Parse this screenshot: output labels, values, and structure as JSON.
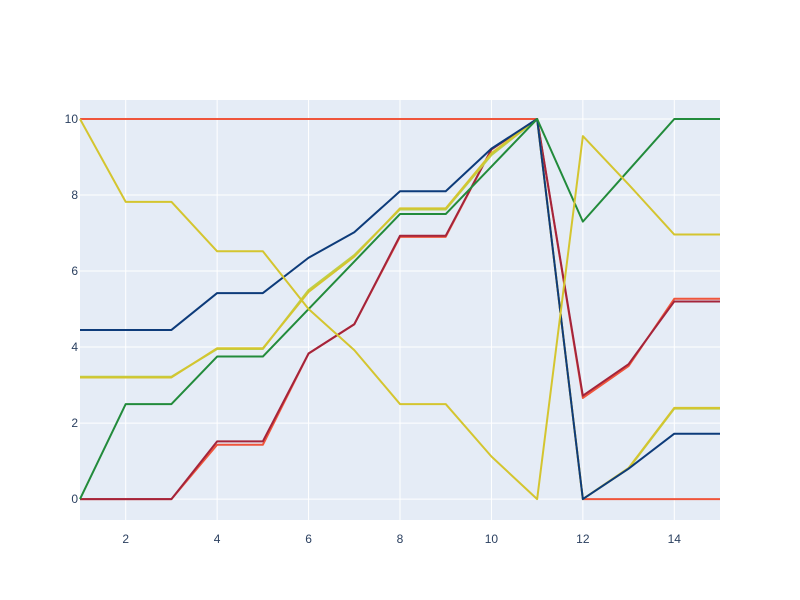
{
  "chart_data": {
    "type": "line",
    "title": "",
    "xlabel": "",
    "ylabel": "",
    "xlim": [
      1,
      15
    ],
    "ylim": [
      -0.55,
      10.5
    ],
    "grid": true,
    "legend": "none",
    "plot_background": "#E5ECF6",
    "gridline_color": "#ffffff",
    "tick_color": "#2a3f5f",
    "x_ticks": [
      2,
      4,
      6,
      8,
      10,
      12,
      14
    ],
    "y_ticks": [
      0,
      2,
      4,
      6,
      8,
      10
    ],
    "x": [
      1,
      2,
      3,
      4,
      5,
      6,
      7,
      8,
      9,
      10,
      11,
      12,
      13,
      14,
      15
    ],
    "series": [
      {
        "color": "#ef553b",
        "values": [
          10,
          10,
          10,
          10,
          10,
          10,
          10,
          10,
          10,
          10,
          10,
          0,
          0,
          0,
          0
        ]
      },
      {
        "color": "#ef553b",
        "values": [
          0,
          0,
          0,
          1.43,
          1.43,
          3.83,
          4.6,
          6.9,
          6.9,
          9.2,
          10,
          2.66,
          3.5,
          5.27,
          5.27
        ]
      },
      {
        "color": "#a4243b",
        "values": [
          0,
          0,
          0,
          1.52,
          1.52,
          3.83,
          4.6,
          6.93,
          6.93,
          9.2,
          10,
          2.72,
          3.55,
          5.2,
          5.2
        ]
      },
      {
        "color": "#bcd04a",
        "values": [
          3.22,
          3.22,
          3.22,
          3.95,
          3.95,
          5.5,
          6.42,
          7.62,
          7.62,
          9.05,
          10,
          0,
          0.8,
          2.38,
          2.38
        ]
      },
      {
        "color": "#d4c52f",
        "values": [
          3.2,
          3.2,
          3.2,
          3.97,
          3.97,
          5.45,
          6.38,
          7.65,
          7.65,
          9.1,
          10,
          0,
          0.82,
          2.4,
          2.4
        ]
      },
      {
        "color": "#0d3b7a",
        "values": [
          4.45,
          4.45,
          4.45,
          5.42,
          5.42,
          6.35,
          7.02,
          8.1,
          8.1,
          9.22,
          10,
          0,
          0.8,
          1.72,
          1.72
        ]
      },
      {
        "color": "#228b3b",
        "values": [
          0,
          2.5,
          2.5,
          3.75,
          3.75,
          5,
          6.25,
          7.5,
          7.5,
          8.75,
          10,
          7.3,
          8.65,
          10,
          10
        ]
      },
      {
        "color": "#d4c52f",
        "values": [
          10,
          7.82,
          7.82,
          6.52,
          6.52,
          5,
          3.92,
          2.5,
          2.5,
          1.12,
          0,
          9.55,
          8.28,
          6.96,
          6.96
        ]
      }
    ]
  }
}
